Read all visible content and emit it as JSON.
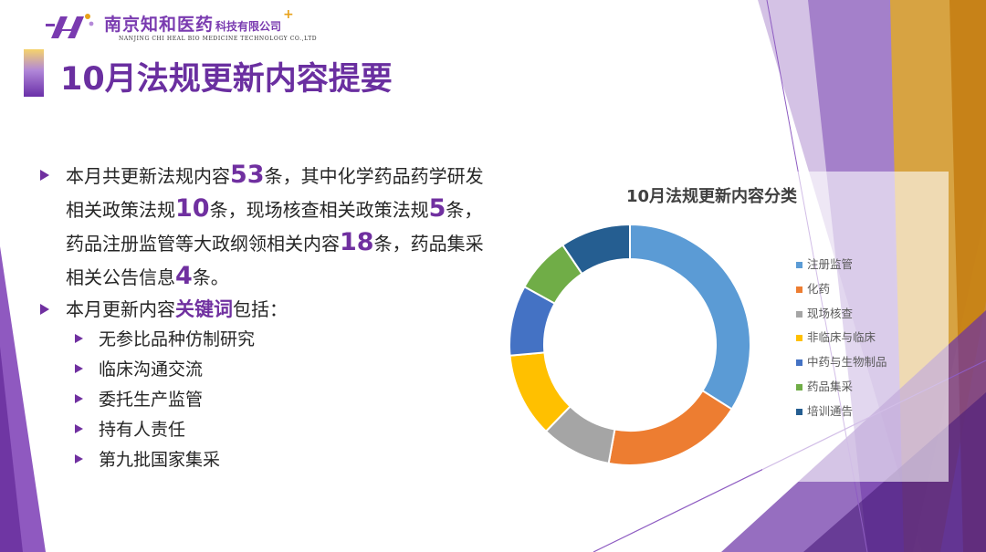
{
  "company": {
    "name_cn": "南京知和医药",
    "name_cn_small": "科技有限公司",
    "plus": "+",
    "name_en": "NANJING CHI HEAL BIO MEDICINE TECHNOLOGY CO.,LTD"
  },
  "slide": {
    "title": "10月法规更新内容提要"
  },
  "summary": {
    "p1": "本月共更新法规内容",
    "n1": "53",
    "p2": "条，其中化学药品药学研发相关政策法规",
    "n2": "10",
    "p3": "条，现场核查相关政策法规",
    "n3": "5",
    "p4": "条，药品注册监管等大政纲领相关内容",
    "n4": "18",
    "p5": "条，药品集采相关公告信息",
    "n5": "4",
    "p6": "条。"
  },
  "keywords": {
    "prefix": "本月更新内容",
    "highlight": "关键词",
    "suffix": "包括：",
    "items": [
      "无参比品种仿制研究",
      "临床沟通交流",
      "委托生产监管",
      "持有人责任",
      "第九批国家集采"
    ]
  },
  "colors": {
    "accent_purple": "#7030a0",
    "title_purple": "#6a2fa0"
  },
  "chart_data": {
    "type": "pie",
    "style": "donut",
    "title": "10月法规更新内容分类",
    "legend_position": "right",
    "categories": [
      "注册监管",
      "化药",
      "现场核查",
      "非临床与临床",
      "中药与生物制品",
      "药品集采",
      "培训通告"
    ],
    "values": [
      18,
      10,
      5,
      6,
      5,
      4,
      5
    ],
    "colors": [
      "#5b9bd5",
      "#ed7d31",
      "#a5a5a5",
      "#ffc000",
      "#4472c4",
      "#70ad47",
      "#255e91"
    ]
  }
}
